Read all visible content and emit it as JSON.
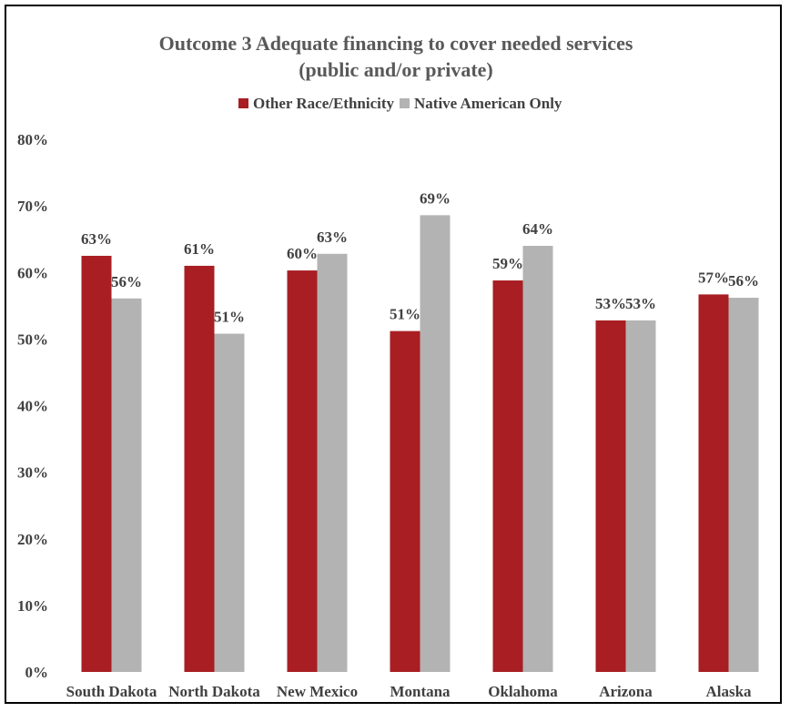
{
  "chart_data": {
    "type": "bar",
    "title": "Outcome 3 Adequate financing to cover needed services",
    "subtitle": "(public and/or private)",
    "categories": [
      "South Dakota",
      "North Dakota",
      "New Mexico",
      "Montana",
      "Oklahoma",
      "Arizona",
      "Alaska"
    ],
    "series": [
      {
        "name": "Other Race/Ethnicity",
        "color": "#A81E23",
        "values": [
          62.5,
          61.0,
          60.3,
          51.2,
          58.8,
          52.8,
          56.7
        ],
        "labels": [
          "63%",
          "61%",
          "60%",
          "51%",
          "59%",
          "53%",
          "57%"
        ]
      },
      {
        "name": "Native American Only",
        "color": "#B3B3B3",
        "values": [
          56.1,
          50.8,
          62.8,
          68.6,
          64.0,
          52.8,
          56.2
        ],
        "labels": [
          "56%",
          "51%",
          "63%",
          "69%",
          "64%",
          "53%",
          "56%"
        ]
      }
    ],
    "ylim": [
      0,
      80
    ],
    "yticks": [
      "0%",
      "10%",
      "20%",
      "30%",
      "40%",
      "50%",
      "60%",
      "70%",
      "80%"
    ],
    "grid": false,
    "legend_position": "top"
  }
}
